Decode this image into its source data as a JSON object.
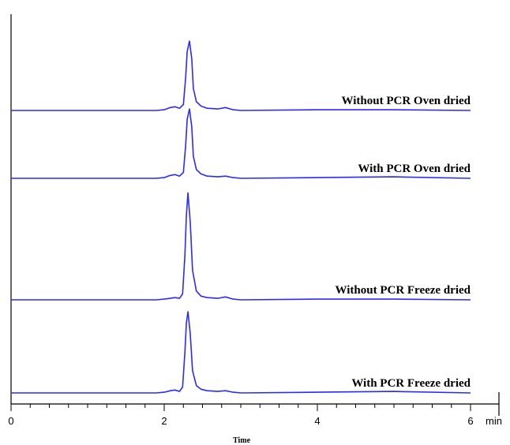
{
  "chart_data": {
    "type": "line",
    "xlabel": "Time",
    "xunit": "min",
    "xlim": [
      0,
      6
    ],
    "xticks": [
      "0",
      "2",
      "4",
      "6"
    ],
    "line_color": "#2a2aff",
    "series": [
      {
        "name": "Without PCR Oven dried",
        "x": [
          0,
          1.9,
          2.0,
          2.08,
          2.14,
          2.2,
          2.25,
          2.28,
          2.3,
          2.33,
          2.36,
          2.38,
          2.42,
          2.48,
          2.56,
          2.7,
          2.8,
          2.9,
          3.0,
          4.0,
          5.0,
          6.0
        ],
        "y": [
          0,
          0,
          0.01,
          0.04,
          0.05,
          0.03,
          0.08,
          0.45,
          0.8,
          0.94,
          0.7,
          0.3,
          0.12,
          0.06,
          0.03,
          0.02,
          0.04,
          0.01,
          0,
          0.01,
          0.01,
          0
        ]
      },
      {
        "name": "With PCR Oven dried",
        "x": [
          0,
          1.9,
          2.0,
          2.08,
          2.14,
          2.2,
          2.25,
          2.28,
          2.3,
          2.33,
          2.36,
          2.38,
          2.42,
          2.48,
          2.56,
          2.7,
          2.8,
          2.9,
          3.0,
          4.0,
          5.0,
          6.0
        ],
        "y": [
          0,
          0,
          0.01,
          0.04,
          0.05,
          0.03,
          0.08,
          0.45,
          0.8,
          0.94,
          0.7,
          0.3,
          0.12,
          0.06,
          0.03,
          0.02,
          0.03,
          0.01,
          0,
          0.01,
          0.02,
          0
        ]
      },
      {
        "name": "Without PCR Freeze dried",
        "x": [
          0,
          1.9,
          2.0,
          2.08,
          2.14,
          2.2,
          2.24,
          2.27,
          2.29,
          2.31,
          2.34,
          2.37,
          2.42,
          2.48,
          2.56,
          2.7,
          2.8,
          2.9,
          3.0,
          4.0,
          5.0,
          6.0
        ],
        "y": [
          0,
          0,
          0.01,
          0.02,
          0.03,
          0.02,
          0.08,
          0.6,
          1.15,
          1.45,
          1.05,
          0.4,
          0.12,
          0.05,
          0.03,
          0.02,
          0.04,
          0.01,
          0,
          0.01,
          0.01,
          0
        ]
      },
      {
        "name": "With PCR Freeze dried",
        "x": [
          0,
          1.9,
          2.0,
          2.08,
          2.14,
          2.2,
          2.24,
          2.27,
          2.29,
          2.31,
          2.34,
          2.37,
          2.42,
          2.48,
          2.56,
          2.7,
          2.8,
          2.9,
          3.0,
          4.0,
          5.0,
          6.0
        ],
        "y": [
          0,
          0,
          0.01,
          0.03,
          0.04,
          0.02,
          0.08,
          0.55,
          0.95,
          1.1,
          0.8,
          0.3,
          0.1,
          0.05,
          0.03,
          0.02,
          0.03,
          0.01,
          0,
          0.01,
          0.02,
          0
        ]
      }
    ]
  }
}
